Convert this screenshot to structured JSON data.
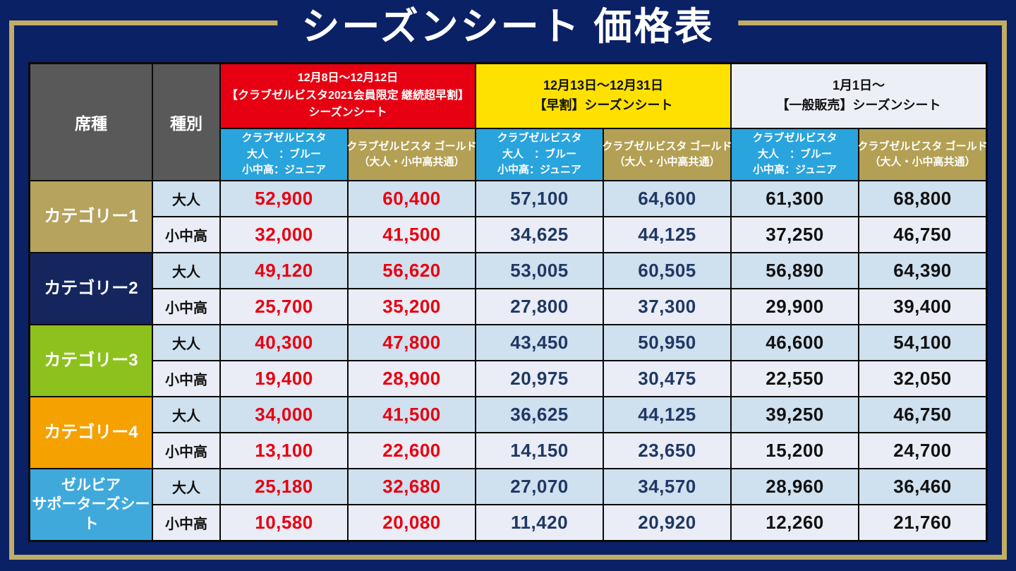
{
  "title": "シーズンシート 価格表",
  "colors": {
    "background": "#0b2166",
    "frame_gold": "#c0ad68",
    "header_gray": "#595959",
    "subheader_blue": "#29a4dd",
    "subheader_gold": "#b3a054",
    "adult_row_bg": "#cfe0ef",
    "youth_row_bg": "#eaecf6",
    "value_red": "#e8000f",
    "value_navy": "#1f3864",
    "value_black": "#111111"
  },
  "table": {
    "seat_header": "席種",
    "type_header": "種別",
    "adult_label": "大人",
    "youth_label": "小中高",
    "groups": [
      {
        "lines": [
          "12月8日～12月12日",
          "【クラブゼルビスタ2021会員限定 継続超早割】",
          "シーズンシート"
        ],
        "bg": "#e60012",
        "fg": "#ffffff",
        "value_color": "#e8000f"
      },
      {
        "lines": [
          "12月13日～12月31日",
          "【早割】シーズンシート"
        ],
        "bg": "#ffe100",
        "fg": "#111111",
        "value_color": "#1f3864"
      },
      {
        "lines": [
          "1月1日～",
          "【一般販売】シーズンシート"
        ],
        "bg": "#edeff7",
        "fg": "#111111",
        "value_color": "#111111"
      }
    ],
    "subheader_blue_lines": [
      "クラブゼルビスタ",
      "大人　：ブルー",
      "小中高：ジュニア"
    ],
    "subheader_gold_lines": [
      "クラブゼルビスタ ゴールド",
      "（大人・小中高共通）"
    ],
    "rows": [
      {
        "seat_lines": [
          "カテゴリー1"
        ],
        "seat_color": "#b5a35e",
        "adult": [
          "52,900",
          "60,400",
          "57,100",
          "64,600",
          "61,300",
          "68,800"
        ],
        "youth": [
          "32,000",
          "41,500",
          "34,625",
          "44,125",
          "37,250",
          "46,750"
        ]
      },
      {
        "seat_lines": [
          "カテゴリー2"
        ],
        "seat_color": "#15265f",
        "adult": [
          "49,120",
          "56,620",
          "53,005",
          "60,505",
          "56,890",
          "64,390"
        ],
        "youth": [
          "25,700",
          "35,200",
          "27,800",
          "37,300",
          "29,900",
          "39,400"
        ]
      },
      {
        "seat_lines": [
          "カテゴリー3"
        ],
        "seat_color": "#8dc21e",
        "adult": [
          "40,300",
          "47,800",
          "43,450",
          "50,950",
          "46,600",
          "54,100"
        ],
        "youth": [
          "19,400",
          "28,900",
          "20,975",
          "30,475",
          "22,550",
          "32,050"
        ]
      },
      {
        "seat_lines": [
          "カテゴリー4"
        ],
        "seat_color": "#f5a100",
        "adult": [
          "34,000",
          "41,500",
          "36,625",
          "44,125",
          "39,250",
          "46,750"
        ],
        "youth": [
          "13,100",
          "22,600",
          "14,150",
          "23,650",
          "15,200",
          "24,700"
        ]
      },
      {
        "seat_lines": [
          "ゼルビア",
          "サポーターズシート"
        ],
        "seat_color": "#3fa9dc",
        "adult": [
          "25,180",
          "32,680",
          "27,070",
          "34,570",
          "28,960",
          "36,460"
        ],
        "youth": [
          "10,580",
          "20,080",
          "11,420",
          "20,920",
          "12,260",
          "21,760"
        ]
      }
    ]
  },
  "chart_data": {
    "type": "table",
    "title": "シーズンシート価格表",
    "column_groups": [
      "12月8日～12月12日【クラブゼルビスタ2021会員限定 継続超早割】シーズンシート",
      "12月13日～12月31日【早割】シーズンシート",
      "1月1日～【一般販売】シーズンシート"
    ],
    "sub_columns_per_group": [
      "クラブゼルビスタ（大人：ブルー／小中高：ジュニア）",
      "クラブゼルビスタ ゴールド（大人・小中高共通）"
    ],
    "row_header_columns": [
      "席種",
      "種別"
    ],
    "rows": [
      {
        "seat": "カテゴリー1",
        "type": "大人",
        "values": [
          52900,
          60400,
          57100,
          64600,
          61300,
          68800
        ]
      },
      {
        "seat": "カテゴリー1",
        "type": "小中高",
        "values": [
          32000,
          41500,
          34625,
          44125,
          37250,
          46750
        ]
      },
      {
        "seat": "カテゴリー2",
        "type": "大人",
        "values": [
          49120,
          56620,
          53005,
          60505,
          56890,
          64390
        ]
      },
      {
        "seat": "カテゴリー2",
        "type": "小中高",
        "values": [
          25700,
          35200,
          27800,
          37300,
          29900,
          39400
        ]
      },
      {
        "seat": "カテゴリー3",
        "type": "大人",
        "values": [
          40300,
          47800,
          43450,
          50950,
          46600,
          54100
        ]
      },
      {
        "seat": "カテゴリー3",
        "type": "小中高",
        "values": [
          19400,
          28900,
          20975,
          30475,
          22550,
          32050
        ]
      },
      {
        "seat": "カテゴリー4",
        "type": "大人",
        "values": [
          34000,
          41500,
          36625,
          44125,
          39250,
          46750
        ]
      },
      {
        "seat": "カテゴリー4",
        "type": "小中高",
        "values": [
          13100,
          22600,
          14150,
          23650,
          15200,
          24700
        ]
      },
      {
        "seat": "ゼルビア サポーターズシート",
        "type": "大人",
        "values": [
          25180,
          32680,
          27070,
          34570,
          28960,
          36460
        ]
      },
      {
        "seat": "ゼルビア サポーターズシート",
        "type": "小中高",
        "values": [
          10580,
          20080,
          11420,
          20920,
          12260,
          21760
        ]
      }
    ]
  }
}
